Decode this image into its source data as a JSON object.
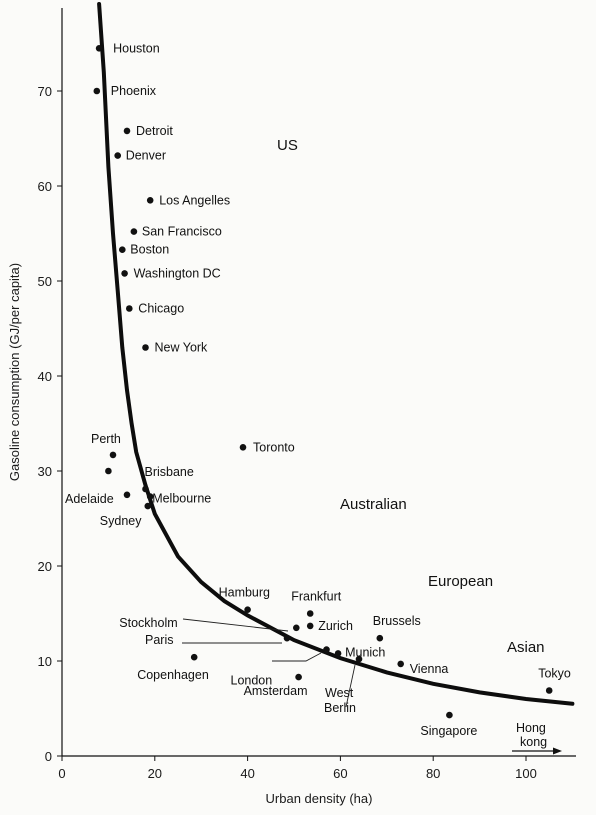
{
  "chart_data": {
    "type": "scatter",
    "xlabel": "Urban density (ha)",
    "ylabel": "Gasoline consumption (GJ/per capita)",
    "xlim": [
      0,
      110
    ],
    "ylim": [
      0,
      80
    ],
    "x_ticks": [
      0,
      20,
      40,
      60,
      80,
      100
    ],
    "y_ticks": [
      0,
      10,
      20,
      30,
      40,
      50,
      60,
      70
    ],
    "grid": false,
    "regions": [
      {
        "label": "US"
      },
      {
        "label": "Australian"
      },
      {
        "label": "European"
      },
      {
        "label": "Asian"
      }
    ],
    "points": [
      {
        "label": "Houston",
        "x": 8,
        "y": 74.5
      },
      {
        "label": "Phoenix",
        "x": 7.5,
        "y": 70
      },
      {
        "label": "Detroit",
        "x": 14,
        "y": 65.8
      },
      {
        "label": "Denver",
        "x": 12,
        "y": 63.2
      },
      {
        "label": "Los Angelles",
        "x": 19,
        "y": 58.5
      },
      {
        "label": "San Francisco",
        "x": 15.5,
        "y": 55.2
      },
      {
        "label": "Boston",
        "x": 13,
        "y": 53.3
      },
      {
        "label": "Washington DC",
        "x": 13.5,
        "y": 50.8
      },
      {
        "label": "Chicago",
        "x": 14.5,
        "y": 47.1
      },
      {
        "label": "New York",
        "x": 18,
        "y": 43
      },
      {
        "label": "Toronto",
        "x": 39,
        "y": 32.5
      },
      {
        "label": "Perth",
        "x": 11,
        "y": 31.7
      },
      {
        "label": "",
        "x": 10,
        "y": 30
      },
      {
        "label": "Brisbane",
        "x": 18,
        "y": 28.1
      },
      {
        "label": "Adelaide",
        "x": 14,
        "y": 27.5
      },
      {
        "label": "Melbourne",
        "x": 19,
        "y": 27.3
      },
      {
        "label": "Sydney",
        "x": 18.5,
        "y": 26.3
      },
      {
        "label": "Hamburg",
        "x": 40,
        "y": 15.4
      },
      {
        "label": "Frankfurt",
        "x": 53.5,
        "y": 15
      },
      {
        "label": "Stockholm",
        "x": 50.5,
        "y": 13.5
      },
      {
        "label": "Zurich",
        "x": 53.5,
        "y": 13.7
      },
      {
        "label": "Paris",
        "x": 48.5,
        "y": 12.4
      },
      {
        "label": "Brussels",
        "x": 68.5,
        "y": 12.4
      },
      {
        "label": "London",
        "x": 57,
        "y": 11.2
      },
      {
        "label": "Munich",
        "x": 59.5,
        "y": 10.8
      },
      {
        "label": "Copenhagen",
        "x": 28.5,
        "y": 10.4
      },
      {
        "label": "West Berlin",
        "x": 64,
        "y": 10.2
      },
      {
        "label": "Vienna",
        "x": 73,
        "y": 9.7
      },
      {
        "label": "Amsterdam",
        "x": 51,
        "y": 8.3
      },
      {
        "label": "Tokyo",
        "x": 105,
        "y": 6.9
      },
      {
        "label": "Singapore",
        "x": 83.5,
        "y": 4.3
      }
    ],
    "annotations": [
      {
        "label": "Hong kong",
        "note": "arrow pointing right, off scale"
      }
    ],
    "fit_curve": [
      [
        8,
        80
      ],
      [
        9,
        72
      ],
      [
        10,
        62
      ],
      [
        11,
        55
      ],
      [
        12,
        49
      ],
      [
        13,
        43
      ],
      [
        14,
        38.5
      ],
      [
        15,
        35
      ],
      [
        16,
        32
      ],
      [
        18,
        28.5
      ],
      [
        20,
        25.5
      ],
      [
        25,
        21
      ],
      [
        30,
        18.3
      ],
      [
        35,
        16.3
      ],
      [
        40,
        14.8
      ],
      [
        50,
        12.2
      ],
      [
        60,
        10.3
      ],
      [
        70,
        8.8
      ],
      [
        80,
        7.6
      ],
      [
        90,
        6.7
      ],
      [
        100,
        6.0
      ],
      [
        110,
        5.5
      ]
    ]
  }
}
